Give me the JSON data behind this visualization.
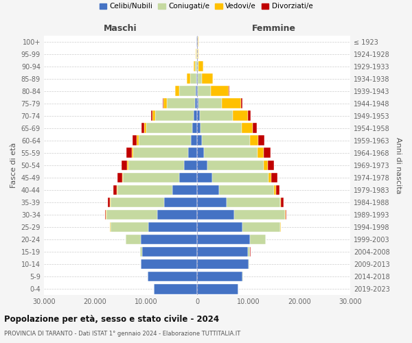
{
  "age_groups": [
    "0-4",
    "5-9",
    "10-14",
    "15-19",
    "20-24",
    "25-29",
    "30-34",
    "35-39",
    "40-44",
    "45-49",
    "50-54",
    "55-59",
    "60-64",
    "65-69",
    "70-74",
    "75-79",
    "80-84",
    "85-89",
    "90-94",
    "95-99",
    "100+"
  ],
  "birth_years": [
    "2019-2023",
    "2014-2018",
    "2009-2013",
    "2004-2008",
    "1999-2003",
    "1994-1998",
    "1989-1993",
    "1984-1988",
    "1979-1983",
    "1974-1978",
    "1969-1973",
    "1964-1968",
    "1959-1963",
    "1954-1958",
    "1949-1953",
    "1944-1948",
    "1939-1943",
    "1934-1938",
    "1929-1933",
    "1924-1928",
    "≤ 1923"
  ],
  "males_celibi": [
    8500,
    9700,
    11000,
    10700,
    11000,
    9500,
    7800,
    6500,
    4800,
    3500,
    2500,
    1700,
    1200,
    900,
    650,
    400,
    250,
    120,
    60,
    30,
    80
  ],
  "males_coniugati": [
    20,
    30,
    80,
    500,
    3000,
    7500,
    10000,
    10500,
    10800,
    11000,
    11000,
    10800,
    10200,
    9000,
    7500,
    5500,
    3200,
    1200,
    300,
    70,
    30
  ],
  "males_vedovi": [
    0,
    0,
    2,
    5,
    15,
    30,
    60,
    100,
    150,
    200,
    250,
    320,
    380,
    450,
    550,
    700,
    800,
    650,
    350,
    120,
    80
  ],
  "males_divorziati": [
    0,
    2,
    5,
    10,
    30,
    80,
    200,
    400,
    650,
    900,
    1000,
    1050,
    800,
    500,
    250,
    100,
    50,
    20,
    8,
    3,
    2
  ],
  "females_nubili": [
    8100,
    8900,
    10100,
    9900,
    10400,
    8800,
    7200,
    5800,
    4300,
    3000,
    2000,
    1300,
    900,
    700,
    500,
    300,
    180,
    90,
    50,
    25,
    60
  ],
  "females_coniugate": [
    20,
    30,
    80,
    500,
    3000,
    7500,
    10000,
    10500,
    10800,
    11000,
    11000,
    10500,
    9500,
    8000,
    6500,
    4500,
    2500,
    800,
    200,
    50,
    20
  ],
  "females_vedove": [
    0,
    0,
    2,
    5,
    10,
    20,
    60,
    150,
    300,
    550,
    800,
    1200,
    1600,
    2200,
    3000,
    3800,
    3500,
    2200,
    900,
    250,
    120
  ],
  "females_divorziate": [
    0,
    2,
    5,
    10,
    30,
    80,
    200,
    450,
    750,
    1100,
    1300,
    1400,
    1200,
    800,
    450,
    200,
    80,
    25,
    8,
    3,
    1
  ],
  "colors": {
    "celibi": "#4472c4",
    "coniugati": "#c5d9a0",
    "vedovi": "#ffc000",
    "divorziati": "#c00000"
  },
  "xtick_labels": [
    "30.000",
    "20.000",
    "10.000",
    "0",
    "10.000",
    "20.000",
    "30.000"
  ],
  "title_main": "Popolazione per età, sesso e stato civile - 2024",
  "title_sub": "PROVINCIA DI TARANTO - Dati ISTAT 1° gennaio 2024 - Elaborazione TUTTITALIA.IT",
  "ylabel_left": "Fasce di età",
  "ylabel_right": "Anni di nascita",
  "label_maschi": "Maschi",
  "label_femmine": "Femmine",
  "legend_labels": [
    "Celibi/Nubili",
    "Coniugati/e",
    "Vedovi/e",
    "Divorziati/e"
  ],
  "bg_color": "#f5f5f5",
  "plot_bg_color": "#ffffff"
}
